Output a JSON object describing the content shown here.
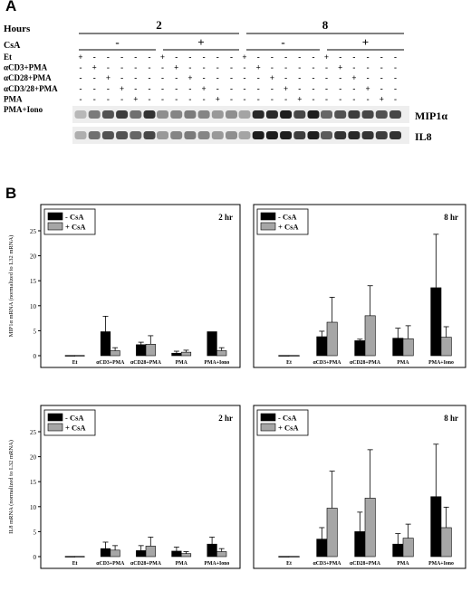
{
  "panel_a": {
    "letter": "A",
    "hours_label": "Hours",
    "csa_label": "CsA",
    "hours": [
      "2",
      "8"
    ],
    "csa_signs": [
      "-",
      "+",
      "-",
      "+"
    ],
    "treatments": [
      "Et",
      "αCD3+PMA",
      "αCD28+PMA",
      "αCD3/28+PMA",
      "PMA",
      "PMA+Iono"
    ],
    "mark_plus": "+",
    "mark_minus": "-",
    "blots": [
      {
        "label": "MIP1α",
        "intensity": [
          0.2,
          0.5,
          0.7,
          0.8,
          0.55,
          0.85,
          0.4,
          0.45,
          0.5,
          0.45,
          0.35,
          0.4,
          0.3,
          0.9,
          0.9,
          0.95,
          0.75,
          0.95,
          0.6,
          0.7,
          0.8,
          0.75,
          0.7,
          0.75
        ]
      },
      {
        "label": "IL8",
        "intensity": [
          0.25,
          0.55,
          0.7,
          0.7,
          0.6,
          0.75,
          0.35,
          0.45,
          0.5,
          0.45,
          0.35,
          0.4,
          0.3,
          0.95,
          0.95,
          0.95,
          0.8,
          0.95,
          0.65,
          0.85,
          0.9,
          0.85,
          0.8,
          0.85
        ]
      }
    ]
  },
  "panel_b": {
    "letter": "B",
    "legend": [
      "- CsA",
      "+ CsA"
    ],
    "categories": [
      "Et",
      "αCD3+PMA",
      "αCD28+PMA",
      "PMA",
      "PMA+Iono"
    ],
    "colors": {
      "minus_csa": "#000000",
      "plus_csa": "#a6a6a6"
    }
  },
  "chart_data": [
    {
      "type": "bar",
      "title": "2 hr",
      "ylabel": "MIP1α mRNA (normalized to L32 mRNA)",
      "categories": [
        "Et",
        "αCD3+PMA",
        "αCD28+PMA",
        "PMA",
        "PMA+Iono"
      ],
      "ylim": [
        0,
        25
      ],
      "yticks": [
        "0",
        "5",
        "10",
        "15",
        "20",
        "25"
      ],
      "series": [
        {
          "name": "- CsA",
          "values": [
            0.05,
            4.8,
            2.2,
            0.5,
            4.8
          ],
          "errors": [
            0,
            3.1,
            0.5,
            0.4,
            0
          ]
        },
        {
          "name": "+ CsA",
          "values": [
            0.05,
            1.0,
            2.3,
            0.7,
            1.0
          ],
          "errors": [
            0,
            0.6,
            1.7,
            0.4,
            0.6
          ]
        }
      ]
    },
    {
      "type": "bar",
      "title": "8 hr",
      "categories": [
        "Et",
        "αCD3+PMA",
        "αCD28+PMA",
        "PMA",
        "PMA+Iono"
      ],
      "ylim": [
        0,
        25
      ],
      "series": [
        {
          "name": "- CsA",
          "values": [
            0.05,
            3.8,
            3.0,
            3.5,
            13.6
          ],
          "errors": [
            0,
            1.1,
            0.3,
            2.0,
            10.7
          ]
        },
        {
          "name": "+ CsA",
          "values": [
            0.05,
            6.7,
            8.0,
            3.4,
            3.7
          ],
          "errors": [
            0,
            5.0,
            6.0,
            2.6,
            2.1
          ]
        }
      ]
    },
    {
      "type": "bar",
      "title": "2 hr",
      "ylabel": "IL8 mRNA (normalized to L32 mRNA)",
      "categories": [
        "Et",
        "αCD3+PMA",
        "αCD28+PMA",
        "PMA",
        "PMA+Iono"
      ],
      "ylim": [
        0,
        25
      ],
      "yticks": [
        "0",
        "5",
        "10",
        "15",
        "20",
        "25"
      ],
      "series": [
        {
          "name": "- CsA",
          "values": [
            0.05,
            1.6,
            1.2,
            1.1,
            2.5
          ],
          "errors": [
            0,
            1.3,
            1.0,
            0.8,
            1.4
          ]
        },
        {
          "name": "+ CsA",
          "values": [
            0.05,
            1.3,
            2.1,
            0.6,
            1.0
          ],
          "errors": [
            0,
            0.9,
            1.8,
            0.4,
            0.6
          ]
        }
      ]
    },
    {
      "type": "bar",
      "title": "8 hr",
      "categories": [
        "Et",
        "αCD3+PMA",
        "αCD28+PMA",
        "PMA",
        "PMA+Iono"
      ],
      "ylim": [
        0,
        25
      ],
      "series": [
        {
          "name": "- CsA",
          "values": [
            0.05,
            3.5,
            5.0,
            2.5,
            12.0
          ],
          "errors": [
            0,
            2.3,
            3.9,
            2.1,
            10.5
          ]
        },
        {
          "name": "+ CsA",
          "values": [
            0.05,
            9.7,
            11.7,
            3.7,
            5.8
          ],
          "errors": [
            0,
            7.4,
            9.7,
            2.8,
            4.1
          ]
        }
      ]
    }
  ]
}
